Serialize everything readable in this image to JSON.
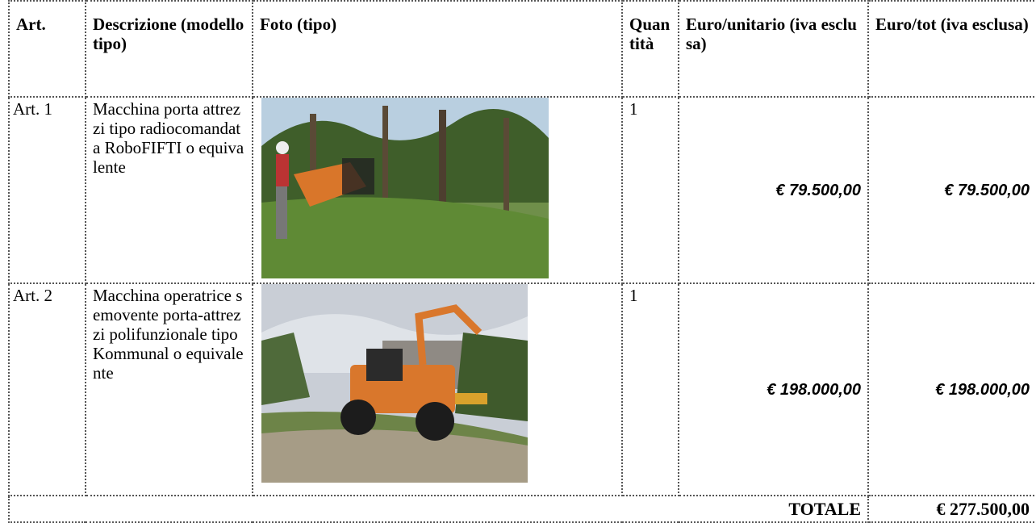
{
  "table": {
    "header": [
      "Art.",
      "Descrizione (modello tipo)",
      "Foto (tipo)",
      "Quantità",
      "Euro/unitario (iva esclusa)",
      "Euro/tot (iva esclusa)"
    ],
    "rows": [
      {
        "art": "Art. 1",
        "description": "Macchina porta attrezzi tipo radiocomandata RoboFIFTI o equivalente",
        "quantity": "1",
        "unit_price": "€ 79.500,00",
        "total_price": "€ 79.500,00"
      },
      {
        "art": "Art. 2",
        "description": "Macchina operatrice semovente porta-attrezzi polifunzionale tipo Kommunal o equivalente",
        "quantity": "1",
        "unit_price": "€ 198.000,00",
        "total_price": "€ 198.000,00"
      }
    ],
    "total_label": "TOTALE",
    "total_value": "€ 277.500,00"
  }
}
